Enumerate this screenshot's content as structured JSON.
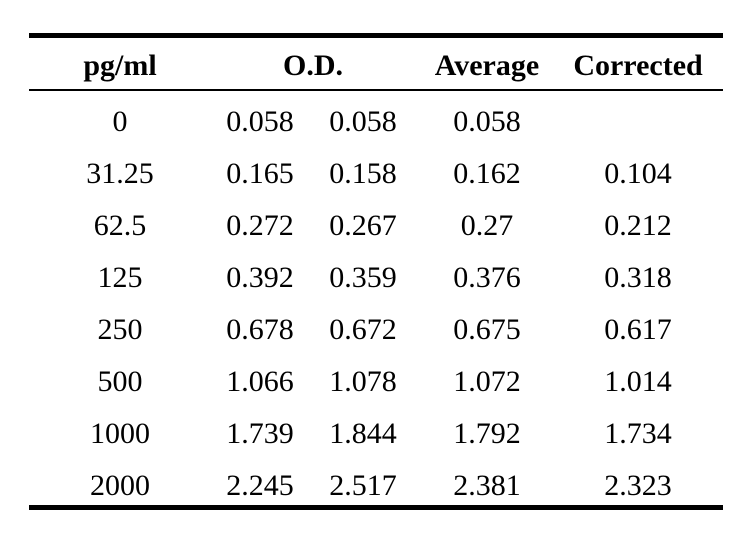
{
  "table": {
    "headers": {
      "concentration": "pg/ml",
      "od": "O.D.",
      "average": "Average",
      "corrected": "Corrected"
    },
    "rows": [
      {
        "concentration": "0",
        "od1": "0.058",
        "od2": "0.058",
        "average": "0.058",
        "corrected": ""
      },
      {
        "concentration": "31.25",
        "od1": "0.165",
        "od2": "0.158",
        "average": "0.162",
        "corrected": "0.104"
      },
      {
        "concentration": "62.5",
        "od1": "0.272",
        "od2": "0.267",
        "average": "0.27",
        "corrected": "0.212"
      },
      {
        "concentration": "125",
        "od1": "0.392",
        "od2": "0.359",
        "average": "0.376",
        "corrected": "0.318"
      },
      {
        "concentration": "250",
        "od1": "0.678",
        "od2": "0.672",
        "average": "0.675",
        "corrected": "0.617"
      },
      {
        "concentration": "500",
        "od1": "1.066",
        "od2": "1.078",
        "average": "1.072",
        "corrected": "1.014"
      },
      {
        "concentration": "1000",
        "od1": "1.739",
        "od2": "1.844",
        "average": "1.792",
        "corrected": "1.734"
      },
      {
        "concentration": "2000",
        "od1": "2.245",
        "od2": "2.517",
        "average": "2.381",
        "corrected": "2.323"
      }
    ]
  }
}
